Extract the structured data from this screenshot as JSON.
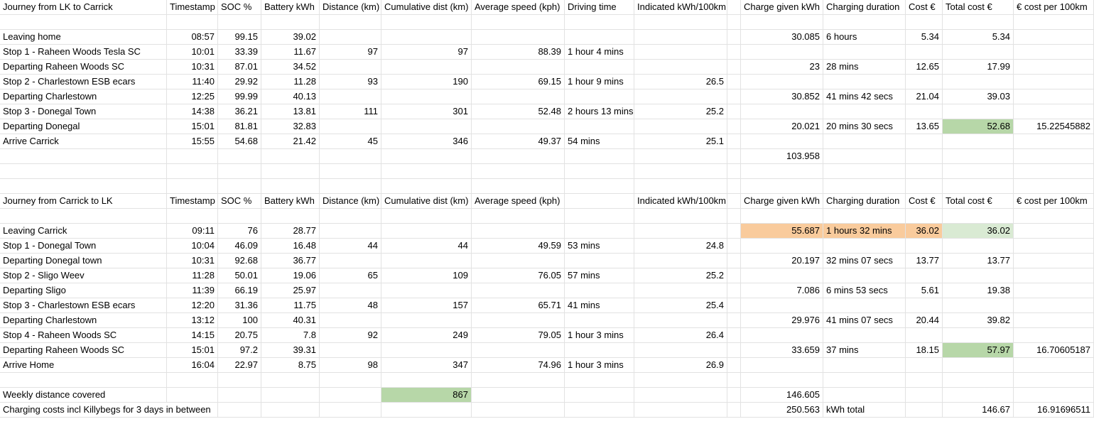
{
  "section1": {
    "header": [
      "Journey from LK to Carrick",
      "Timestamp",
      "SOC %",
      "Battery kWh",
      "Distance (km)",
      "Cumulative dist (km)",
      "Average speed (kph)",
      "Driving time",
      "Indicated kWh/100km",
      "",
      "Charge given kWh",
      "Charging duration",
      "Cost €",
      "Total cost €",
      "€ cost per 100km"
    ],
    "rows": [
      [
        "Leaving home",
        "08:57",
        "99.15",
        "39.02",
        "",
        "",
        "",
        "",
        "",
        "",
        "30.085",
        "6 hours",
        "5.34",
        "5.34",
        ""
      ],
      [
        "Stop 1 - Raheen Woods Tesla SC",
        "10:01",
        "33.39",
        "11.67",
        "97",
        "97",
        "88.39",
        "1 hour 4 mins",
        "",
        "",
        "",
        "",
        "",
        "",
        ""
      ],
      [
        "Departing Raheen Woods SC",
        "10:31",
        "87.01",
        "34.52",
        "",
        "",
        "",
        "",
        "",
        "",
        "23",
        "28 mins",
        "12.65",
        "17.99",
        ""
      ],
      [
        "Stop 2 - Charlestown ESB ecars",
        "11:40",
        "29.92",
        "11.28",
        "93",
        "190",
        "69.15",
        "1 hour 9 mins",
        "26.5",
        "",
        "",
        "",
        "",
        "",
        ""
      ],
      [
        "Departing Charlestown",
        "12:25",
        "99.99",
        "40.13",
        "",
        "",
        "",
        "",
        "",
        "",
        "30.852",
        "41 mins 42 secs",
        "21.04",
        "39.03",
        ""
      ],
      [
        "Stop 3 - Donegal Town",
        "14:38",
        "36.21",
        "13.81",
        "111",
        "301",
        "52.48",
        "2 hours 13 mins",
        "25.2",
        "",
        "",
        "",
        "",
        "",
        ""
      ],
      [
        "Departing Donegal",
        "15:01",
        "81.81",
        "32.83",
        "",
        "",
        "",
        "",
        "",
        "",
        "20.021",
        "20 mins 30 secs",
        "13.65",
        "52.68",
        "15.22545882"
      ],
      [
        "Arrive Carrick",
        "15:55",
        "54.68",
        "21.42",
        "45",
        "346",
        "49.37",
        "54 mins",
        "25.1",
        "",
        "",
        "",
        "",
        "",
        ""
      ]
    ],
    "charge_total": "103.958"
  },
  "section2": {
    "header": [
      "Journey from Carrick to LK",
      "Timestamp",
      "SOC %",
      "Battery kWh",
      "Distance (km)",
      "Cumulative dist (km)",
      "Average speed (kph)",
      "",
      "Indicated kWh/100km",
      "",
      "Charge given kWh",
      "Charging duration",
      "Cost €",
      "Total cost €",
      "€ cost per 100km"
    ],
    "rows": [
      [
        "Leaving Carrick",
        "09:11",
        "76",
        "28.77",
        "",
        "",
        "",
        "",
        "",
        "",
        "55.687",
        "1 hours 32 mins",
        "36.02",
        "36.02",
        ""
      ],
      [
        "Stop 1 - Donegal Town",
        "10:04",
        "46.09",
        "16.48",
        "44",
        "44",
        "49.59",
        "53 mins",
        "24.8",
        "",
        "",
        "",
        "",
        "",
        ""
      ],
      [
        "Departing Donegal town",
        "10:31",
        "92.68",
        "36.77",
        "",
        "",
        "",
        "",
        "",
        "",
        "20.197",
        "32 mins 07 secs",
        "13.77",
        "13.77",
        ""
      ],
      [
        "Stop 2 - Sligo Weev",
        "11:28",
        "50.01",
        "19.06",
        "65",
        "109",
        "76.05",
        "57 mins",
        "25.2",
        "",
        "",
        "",
        "",
        "",
        ""
      ],
      [
        "Departing Sligo",
        "11:39",
        "66.19",
        "25.97",
        "",
        "",
        "",
        "",
        "",
        "",
        "7.086",
        "6 mins 53 secs",
        "5.61",
        "19.38",
        ""
      ],
      [
        "Stop 3 - Charlestown ESB ecars",
        "12:20",
        "31.36",
        "11.75",
        "48",
        "157",
        "65.71",
        "41 mins",
        "25.4",
        "",
        "",
        "",
        "",
        "",
        ""
      ],
      [
        "Departing Charlestown",
        "13:12",
        "100",
        "40.31",
        "",
        "",
        "",
        "",
        "",
        "",
        "29.976",
        "41 mins 07 secs",
        "20.44",
        "39.82",
        ""
      ],
      [
        "Stop 4 - Raheen Woods SC",
        "14:15",
        "20.75",
        "7.8",
        "92",
        "249",
        "79.05",
        "1 hour 3 mins",
        "26.4",
        "",
        "",
        "",
        "",
        "",
        ""
      ],
      [
        "Departing Raheen Woods SC",
        "15:01",
        "97.2",
        "39.31",
        "",
        "",
        "",
        "",
        "",
        "",
        "33.659",
        "37 mins",
        "18.15",
        "57.97",
        "16.70605187"
      ],
      [
        "Arrive Home",
        "16:04",
        "22.97",
        "8.75",
        "98",
        "347",
        "74.96",
        "1 hour 3 mins",
        "26.9",
        "",
        "",
        "",
        "",
        "",
        ""
      ]
    ]
  },
  "summary": {
    "weekly_label": "Weekly distance covered",
    "weekly_distance": "867",
    "weekly_charge": "146.605",
    "charging_label": "Charging costs incl Killybegs for 3 days in between",
    "charging_kwh": "250.563",
    "charging_kwh_unit": "kWh total",
    "charging_total_cost": "146.67",
    "charging_cost_per_100km": "16.91696511"
  },
  "colors": {
    "green": "#b7d7a8",
    "light_green": "#d9ead3",
    "orange": "#f9cb9c",
    "gridline": "#e2e2e2"
  }
}
